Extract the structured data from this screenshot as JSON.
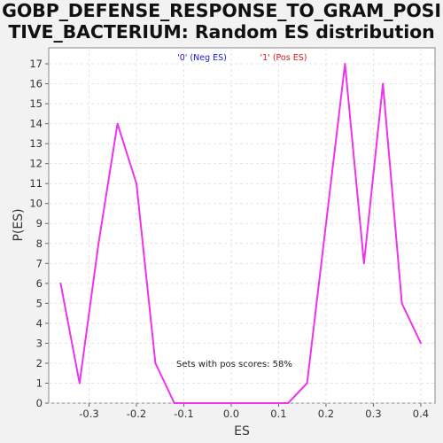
{
  "chart_data": {
    "type": "line",
    "title": "GOBP_DEFENSE_RESPONSE_TO_GRAM_POSI\nTIVE_BACTERIUM: Random ES distribution",
    "xlabel": "ES",
    "ylabel": "P(ES)",
    "xlim": [
      -0.385,
      0.43
    ],
    "ylim": [
      0,
      17.8
    ],
    "xticks": [
      -0.3,
      -0.2,
      -0.1,
      0.0,
      0.1,
      0.2,
      0.3,
      0.4
    ],
    "xtick_labels": [
      "-0.3",
      "-0.2",
      "-0.1",
      "0.0",
      "0.1",
      "0.2",
      "0.3",
      "0.4"
    ],
    "yticks": [
      0,
      1,
      2,
      3,
      4,
      5,
      6,
      7,
      8,
      9,
      10,
      11,
      12,
      13,
      14,
      15,
      16,
      17
    ],
    "grid": true,
    "legend": [
      {
        "label": "'0' (Neg ES)",
        "color": "#1a1ad6"
      },
      {
        "label": "'1' (Pos ES)",
        "color": "#d61a1a"
      }
    ],
    "legend_placement": "top-center",
    "series": [
      {
        "color": "#ee33ee",
        "x": [
          -0.36,
          -0.32,
          -0.28,
          -0.24,
          -0.2,
          -0.16,
          -0.12,
          -0.08,
          -0.04,
          0.0,
          0.04,
          0.08,
          0.12,
          0.16,
          0.2,
          0.24,
          0.28,
          0.32,
          0.36,
          0.4
        ],
        "y": [
          6,
          1,
          8,
          14,
          11,
          2,
          0,
          0,
          0,
          0,
          0,
          0,
          0,
          1,
          9,
          17,
          7,
          16,
          5,
          3
        ]
      }
    ],
    "annotation": "Sets with pos scores: 58%"
  }
}
